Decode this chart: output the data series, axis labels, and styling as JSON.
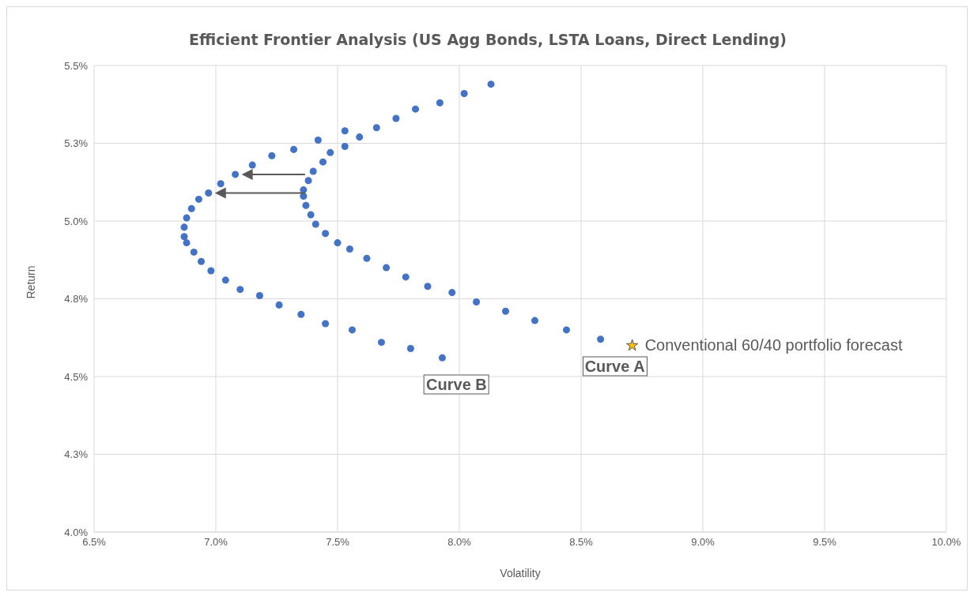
{
  "chart_data": {
    "type": "scatter",
    "title": "Efficient Frontier Analysis (US Agg Bonds, LSTA Loans, Direct Lending)",
    "xlabel": "Volatility",
    "ylabel": "Return",
    "xlim": [
      6.5,
      10.0
    ],
    "xticks": [
      {
        "value": 6.5,
        "label": "6.5%"
      },
      {
        "value": 7.0,
        "label": "7.0%"
      },
      {
        "value": 7.5,
        "label": "7.5%"
      },
      {
        "value": 8.0,
        "label": "8.0%"
      },
      {
        "value": 8.5,
        "label": "8.5%"
      },
      {
        "value": 9.0,
        "label": "9.0%"
      },
      {
        "value": 9.5,
        "label": "9.5%"
      },
      {
        "value": 10.0,
        "label": "10.0%"
      }
    ],
    "ylim": [
      4.0,
      5.5
    ],
    "yticks": [
      {
        "value": 4.0,
        "label": "4.0%"
      },
      {
        "value": 4.25,
        "label": "4.3%"
      },
      {
        "value": 4.5,
        "label": "4.5%"
      },
      {
        "value": 4.75,
        "label": "4.8%"
      },
      {
        "value": 5.0,
        "label": "5.0%"
      },
      {
        "value": 5.25,
        "label": "5.3%"
      },
      {
        "value": 5.5,
        "label": "5.5%"
      }
    ],
    "grid": true,
    "series": [
      {
        "color": "#4472c4",
        "marker": "circle",
        "x": [
          8.13,
          8.02,
          7.92,
          7.82,
          7.74,
          7.66,
          7.59,
          7.53,
          7.47,
          7.44,
          7.4,
          7.38,
          7.36,
          7.36,
          7.37,
          7.39,
          7.41,
          7.45,
          7.5,
          7.55,
          7.62,
          7.7,
          7.78,
          7.87,
          7.97,
          8.07,
          8.19,
          8.31,
          8.44,
          8.58
        ],
        "values": [
          5.44,
          5.41,
          5.38,
          5.36,
          5.33,
          5.3,
          5.27,
          5.24,
          5.22,
          5.19,
          5.16,
          5.13,
          5.1,
          5.08,
          5.05,
          5.02,
          4.99,
          4.96,
          4.93,
          4.91,
          4.88,
          4.85,
          4.82,
          4.79,
          4.77,
          4.74,
          4.71,
          4.68,
          4.65,
          4.62
        ]
      },
      {
        "color": "#4472c4",
        "marker": "circle",
        "x": [
          7.53,
          7.42,
          7.32,
          7.23,
          7.15,
          7.08,
          7.02,
          6.97,
          6.93,
          6.9,
          6.88,
          6.87,
          6.87,
          6.88,
          6.91,
          6.94,
          6.98,
          7.04,
          7.1,
          7.18,
          7.26,
          7.35,
          7.45,
          7.56,
          7.68,
          7.8,
          7.93
        ],
        "values": [
          5.29,
          5.26,
          5.23,
          5.21,
          5.18,
          5.15,
          5.12,
          5.09,
          5.07,
          5.04,
          5.01,
          4.98,
          4.95,
          4.93,
          4.9,
          4.87,
          4.84,
          4.81,
          4.78,
          4.76,
          4.73,
          4.7,
          4.67,
          4.65,
          4.61,
          4.59,
          4.56
        ]
      },
      {
        "name": "Conventional 60/40 portfolio forecast",
        "color": "#ffc000",
        "marker": "star",
        "x": [
          8.71
        ],
        "values": [
          4.6
        ]
      }
    ],
    "annotations": [
      "Curve B",
      "Curve A"
    ]
  }
}
